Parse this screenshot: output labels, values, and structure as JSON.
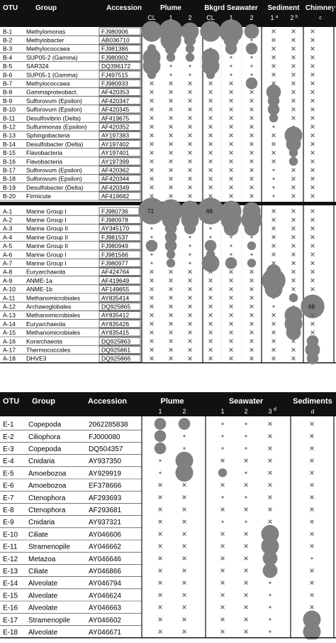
{
  "chart_data": [
    {
      "type": "table",
      "panel": "bacteria-archaea",
      "columns": {
        "otu": "OTU",
        "group": "Group",
        "accession": "Accession"
      },
      "groups": [
        {
          "label": "Plume",
          "sublabels": [
            "CL",
            "1",
            "2"
          ]
        },
        {
          "label": "Bkgrd Seawater",
          "sublabels": [
            "CL",
            "1",
            "2"
          ]
        },
        {
          "label": "Sediment",
          "sublabels": [
            "1",
            "2"
          ],
          "superscripts": [
            "a",
            "b"
          ]
        },
        {
          "label": "Chimney",
          "sublabels": [
            ""
          ],
          "superscripts": [
            "c"
          ]
        }
      ],
      "value_encoding": "circle area proportional to relative abundance; 'x' = not detected; '·' = small dot",
      "rows": [
        {
          "otu": "B-1",
          "group": "Methylomonas",
          "acc": "FJ980906",
          "v": [
            6,
            7,
            5,
            6,
            7,
            4,
            "x",
            "x",
            "x"
          ]
        },
        {
          "otu": "B-2",
          "group": "Methylobacter",
          "acc": "AB036710",
          "v": [
            1,
            6,
            3,
            1,
            4,
            1,
            "x",
            "x",
            "x"
          ]
        },
        {
          "otu": "B-3",
          "group": "Methylococcaea",
          "acc": "FJ981386",
          "v": [
            2,
            3,
            2,
            1,
            3,
            3,
            "x",
            "x",
            "x"
          ]
        },
        {
          "otu": "B-4",
          "group": "SUP05-2 (Gamma)",
          "acc": "FJ980902",
          "v": [
            5,
            2,
            2,
            5,
            1,
            1,
            "x",
            "x",
            "x"
          ]
        },
        {
          "otu": "B-5",
          "group": "SAR324",
          "acc": "DQ396172",
          "v": [
            5,
            1,
            1,
            5,
            1,
            1,
            "x",
            "x",
            "x"
          ]
        },
        {
          "otu": "B-6",
          "group": "SUP05-1 (Gamma)",
          "acc": "FJ497515",
          "v": [
            2,
            1,
            1,
            2,
            1,
            1,
            "x",
            "x",
            "x"
          ]
        },
        {
          "otu": "B-7",
          "group": "Methylococcaea",
          "acc": "FJ980933",
          "v": [
            "x",
            "x",
            "x",
            "x",
            "x",
            3,
            "x",
            "x",
            "x"
          ]
        },
        {
          "otu": "B-8",
          "group": "Gammaproteobact.",
          "acc": "AF420353",
          "v": [
            "x",
            "x",
            "x",
            "x",
            "x",
            "x",
            4,
            "x",
            "x"
          ]
        },
        {
          "otu": "B-9",
          "group": "Sulforovum (Epsilon)",
          "acc": "AF420347",
          "v": [
            "x",
            "x",
            "x",
            "x",
            "x",
            "x",
            3,
            "x",
            "x"
          ]
        },
        {
          "otu": "B-10",
          "group": "Sulforovum (Epsilon)",
          "acc": "AF420345",
          "v": [
            "x",
            "x",
            "x",
            "x",
            "x",
            "x",
            3,
            "x",
            "x"
          ]
        },
        {
          "otu": "B-11",
          "group": "Desulfovibrio (Delta)",
          "acc": "AF419675",
          "v": [
            "x",
            "x",
            "x",
            "x",
            "x",
            "x",
            2,
            "x",
            "x"
          ]
        },
        {
          "otu": "B-12",
          "group": "Sulfurimonas (Epsilon)",
          "acc": "AF420352",
          "v": [
            "x",
            "x",
            "x",
            "x",
            "x",
            "x",
            1,
            1,
            "x"
          ]
        },
        {
          "otu": "B-13",
          "group": "Sphingobacteria",
          "acc": "AY197383",
          "v": [
            "x",
            "x",
            "x",
            "x",
            "x",
            "x",
            "x",
            5,
            "x"
          ]
        },
        {
          "otu": "B-14",
          "group": "Desulfobacter (Delta)",
          "acc": "AY197402",
          "v": [
            "x",
            "x",
            "x",
            "x",
            "x",
            "x",
            "x",
            4,
            "x"
          ]
        },
        {
          "otu": "B-15",
          "group": "Flavobacteria",
          "acc": "AY197401",
          "v": [
            "x",
            "x",
            "x",
            "x",
            "x",
            "x",
            "x",
            2,
            "x"
          ]
        },
        {
          "otu": "B-16",
          "group": "Flavobacteria",
          "acc": "AY197399",
          "v": [
            "x",
            "x",
            "x",
            "x",
            "x",
            "x",
            "x",
            2,
            "x"
          ]
        },
        {
          "otu": "B-17",
          "group": "Sulforovum (Epsilon)",
          "acc": "AF420362",
          "v": [
            "x",
            "x",
            "x",
            "x",
            "x",
            "x",
            1,
            "x",
            "x"
          ]
        },
        {
          "otu": "B-18",
          "group": "Sulforovum (Epsilon)",
          "acc": "AF420344",
          "v": [
            "x",
            "x",
            "x",
            "x",
            "x",
            "x",
            1,
            "x",
            "x"
          ]
        },
        {
          "otu": "B-19",
          "group": "Desulfobacter (Delta)",
          "acc": "AF420349",
          "v": [
            "x",
            "x",
            "x",
            "x",
            "x",
            "x",
            1,
            "x",
            "x"
          ]
        },
        {
          "otu": "B-20",
          "group": "Firmicute",
          "acc": "AF419682",
          "v": [
            "x",
            "x",
            "x",
            "x",
            "x",
            "x",
            1,
            "x",
            "x"
          ]
        },
        {
          "otu": "A-1",
          "group": "Marine Group I",
          "acc": "FJ980736",
          "v": [
            8,
            7,
            6,
            8,
            6,
            5,
            "x",
            "x",
            "x"
          ],
          "labels": {
            "0": "71",
            "3": "66"
          }
        },
        {
          "otu": "A-2",
          "group": "Marine Group I",
          "acc": "FJ980978",
          "v": [
            1,
            5,
            5,
            1,
            6,
            6,
            "x",
            "x",
            "x"
          ]
        },
        {
          "otu": "A-3",
          "group": "Marine Group II",
          "acc": "AY345170",
          "v": [
            1,
            3,
            3,
            1,
            4,
            4,
            "x",
            "x",
            "x"
          ]
        },
        {
          "otu": "A-4",
          "group": "Marine Group II",
          "acc": "FJ981537",
          "v": [
            1,
            3,
            1,
            1,
            1,
            1,
            "x",
            "x",
            "x"
          ]
        },
        {
          "otu": "A-5",
          "group": "Marine Group II",
          "acc": "FJ980949",
          "v": [
            3,
            3,
            1,
            3,
            1,
            2,
            "x",
            "x",
            "x"
          ]
        },
        {
          "otu": "A-6",
          "group": "Marine Group I",
          "acc": "FJ981566",
          "v": [
            1,
            2,
            1,
            2,
            1,
            1,
            "x",
            "x",
            "x"
          ]
        },
        {
          "otu": "A-7",
          "group": "Marine Group I",
          "acc": "FJ980977",
          "v": [
            1,
            2,
            1,
            5,
            3,
            2,
            "x",
            "x",
            "x"
          ]
        },
        {
          "otu": "A-8",
          "group": "Euryarchaeota",
          "acc": "AF424764",
          "v": [
            "x",
            "x",
            "x",
            "x",
            "x",
            "x",
            4,
            "x",
            "x"
          ]
        },
        {
          "otu": "A-9",
          "group": "ANME-1a",
          "acc": "AF419649",
          "v": [
            "x",
            "x",
            "x",
            "x",
            "x",
            "x",
            7,
            "x",
            "x"
          ]
        },
        {
          "otu": "A-10",
          "group": "ANME-1b",
          "acc": "AF149655",
          "v": [
            "x",
            "x",
            "x",
            "x",
            "x",
            "x",
            5,
            "x",
            "x"
          ]
        },
        {
          "otu": "A-11",
          "group": "Methanomicrobiales",
          "acc": "AY835414",
          "v": [
            "x",
            "x",
            "x",
            "x",
            "x",
            "x",
            1,
            2,
            "x"
          ]
        },
        {
          "otu": "A-12",
          "group": "Archaeoglobales",
          "acc": "DQ925865",
          "v": [
            "x",
            "x",
            "x",
            "x",
            "x",
            "x",
            1,
            1,
            7
          ],
          "labels": {
            "8": "68"
          }
        },
        {
          "otu": "A-13",
          "group": "Methanomicrobiales",
          "acc": "AY835412",
          "v": [
            "x",
            "x",
            "x",
            "x",
            "x",
            "x",
            "x",
            5,
            "x"
          ]
        },
        {
          "otu": "A-14",
          "group": "Euryarchaeota",
          "acc": "AY835426",
          "v": [
            "x",
            "x",
            "x",
            "x",
            "x",
            "x",
            "x",
            5,
            "x"
          ]
        },
        {
          "otu": "A-15",
          "group": "Methanomicrobiales",
          "acc": "AY835415",
          "v": [
            "x",
            "x",
            "x",
            "x",
            "x",
            "x",
            "x",
            4,
            "x"
          ]
        },
        {
          "otu": "A-16",
          "group": "Korarchaeota",
          "acc": "DQ925863",
          "v": [
            "x",
            "x",
            "x",
            "x",
            "x",
            "x",
            "x",
            "x",
            3
          ]
        },
        {
          "otu": "A-17",
          "group": "Thermococcales",
          "acc": "DQ925861",
          "v": [
            "x",
            "x",
            "x",
            "x",
            "x",
            "x",
            "x",
            "x",
            4
          ]
        },
        {
          "otu": "A-18",
          "group": "DHVE3",
          "acc": "DQ925866",
          "v": [
            "x",
            "x",
            "x",
            "x",
            "x",
            "x",
            "x",
            "x",
            3
          ]
        }
      ]
    },
    {
      "type": "table",
      "panel": "eukaryotes",
      "columns": {
        "otu": "OTU",
        "group": "Group",
        "accession": "Accession"
      },
      "groups": [
        {
          "label": "Plume",
          "sublabels": [
            "1",
            "2"
          ]
        },
        {
          "label": "Seawater",
          "sublabels": [
            "1",
            "2",
            "3"
          ],
          "superscripts": [
            "",
            "",
            "d"
          ]
        },
        {
          "label": "Sediments",
          "sublabels": [
            ""
          ],
          "superscripts": [
            "d"
          ]
        }
      ],
      "value_encoding": "circle area proportional to relative abundance; 'x' = not detected; '·' = small dot",
      "rows": [
        {
          "otu": "E-1",
          "group": "Copepoda",
          "acc": "2062285838",
          "v": [
            3,
            3,
            1,
            1,
            "x",
            "x"
          ]
        },
        {
          "otu": "E-2",
          "group": "Ciliophora",
          "acc": "FJ000080",
          "v": [
            3,
            1,
            1,
            1,
            "x",
            "x"
          ]
        },
        {
          "otu": "E-3",
          "group": "Copepoda",
          "acc": "DQ504357",
          "v": [
            3,
            1,
            1,
            1,
            "x",
            "x"
          ]
        },
        {
          "otu": "E-4",
          "group": "Cnidaria",
          "acc": "AY937350",
          "v": [
            1,
            5,
            "x",
            "x",
            "x",
            "x"
          ]
        },
        {
          "otu": "E-5",
          "group": "Amoebozoa",
          "acc": "AY929919",
          "v": [
            1,
            5,
            2,
            1,
            "x",
            "x"
          ]
        },
        {
          "otu": "E-6",
          "group": "Amoebozoa",
          "acc": "EF378666",
          "v": [
            "x",
            "x",
            "x",
            "x",
            "x",
            "x"
          ]
        },
        {
          "otu": "E-7",
          "group": "Ctenophora",
          "acc": "AF293693",
          "v": [
            "x",
            "x",
            1,
            1,
            "x",
            "x"
          ]
        },
        {
          "otu": "E-8",
          "group": "Ctenophora",
          "acc": "AF293681",
          "v": [
            "x",
            "x",
            "x",
            "x",
            "x",
            "x"
          ]
        },
        {
          "otu": "E-9",
          "group": "Cnidaria",
          "acc": "AY937321",
          "v": [
            "x",
            "x",
            1,
            1,
            "x",
            "x"
          ]
        },
        {
          "otu": "E-10",
          "group": "Ciliate",
          "acc": "AY046606",
          "v": [
            "x",
            "x",
            "x",
            "x",
            5,
            "x"
          ]
        },
        {
          "otu": "E-11",
          "group": "Stramenopile",
          "acc": "AY046662",
          "v": [
            "x",
            "x",
            "x",
            "x",
            5,
            "x"
          ]
        },
        {
          "otu": "E-12",
          "group": "Metazoa",
          "acc": "AY046646",
          "v": [
            "x",
            "x",
            "x",
            "x",
            4,
            1
          ]
        },
        {
          "otu": "E-13",
          "group": "Ciliate",
          "acc": "AY046866",
          "v": [
            "x",
            "x",
            "x",
            "x",
            4,
            "x"
          ]
        },
        {
          "otu": "E-14",
          "group": "Alveolate",
          "acc": "AY046794",
          "v": [
            "x",
            "x",
            "x",
            "x",
            1,
            "x"
          ]
        },
        {
          "otu": "E-15",
          "group": "Alveolate",
          "acc": "AY046624",
          "v": [
            "x",
            "x",
            "x",
            "x",
            1,
            "x"
          ]
        },
        {
          "otu": "E-16",
          "group": "Alveolate",
          "acc": "AY046663",
          "v": [
            "x",
            "x",
            "x",
            "x",
            1,
            "x"
          ]
        },
        {
          "otu": "E-17",
          "group": "Stramenopile",
          "acc": "AY046602",
          "v": [
            "x",
            "x",
            "x",
            "x",
            1,
            5
          ]
        },
        {
          "otu": "E-18",
          "group": "Alveolate",
          "acc": "AY046671",
          "v": [
            "x",
            "x",
            "x",
            "x",
            1,
            5
          ]
        }
      ]
    }
  ],
  "colors": {
    "header_bg": "#111111",
    "bubble": "#808080",
    "x_mark": "#666666",
    "grid": "#222222"
  }
}
